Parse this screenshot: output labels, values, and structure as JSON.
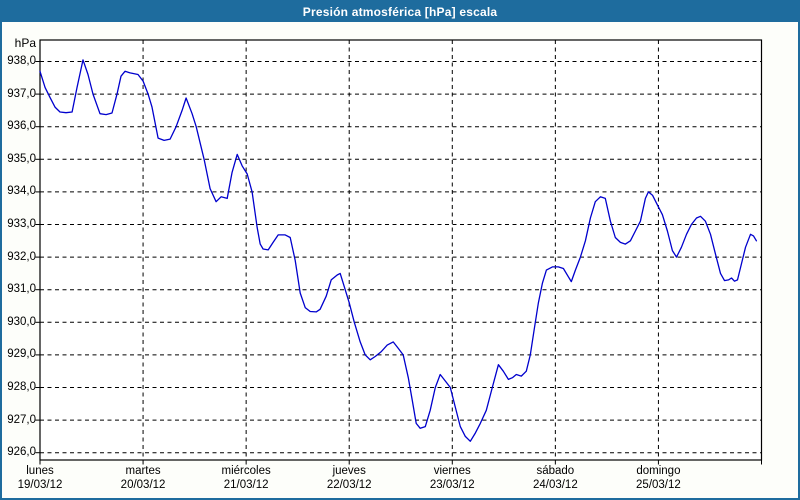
{
  "window": {
    "title": "Presión atmosférica [hPa] escala"
  },
  "colors": {
    "titlebar_bg": "#1e6c9e",
    "window_border": "#1e6c9e",
    "page_bg": "#fdfefa",
    "plot_bg": "#ffffff",
    "grid_color": "#000000",
    "axis_color": "#000000",
    "line_color": "#0000cd",
    "title_text": "#ffffff",
    "tick_text": "#000000"
  },
  "chart_data": {
    "type": "line",
    "title": "Presión atmosférica [hPa] escala",
    "unit_label": "hPa",
    "ylabel": "hPa",
    "xlabel": "",
    "grid": "dashed",
    "legend": "none",
    "ylim": [
      925.8,
      938.65
    ],
    "y_ticks": [
      938,
      937,
      936,
      935,
      934,
      933,
      932,
      931,
      930,
      929,
      928,
      927,
      926
    ],
    "y_tick_labels": [
      "938,0",
      "937,0",
      "936,0",
      "935,0",
      "934,0",
      "933,0",
      "932,0",
      "931,0",
      "930,0",
      "929,0",
      "928,0",
      "927,0",
      "926,0"
    ],
    "x_days_total": 7,
    "x_categories": [
      {
        "day": "lunes",
        "date": "19/03/12"
      },
      {
        "day": "martes",
        "date": "20/03/12"
      },
      {
        "day": "miércoles",
        "date": "21/03/12"
      },
      {
        "day": "jueves",
        "date": "22/03/12"
      },
      {
        "day": "viernes",
        "date": "23/03/12"
      },
      {
        "day": "sábado",
        "date": "24/03/12"
      },
      {
        "day": "domingo",
        "date": "25/03/12"
      }
    ],
    "series": [
      {
        "name": "Presión atmosférica",
        "color": "#0000cd",
        "points": [
          [
            0.0,
            937.7
          ],
          [
            0.049,
            937.2
          ],
          [
            0.097,
            936.9
          ],
          [
            0.146,
            936.6
          ],
          [
            0.194,
            936.45
          ],
          [
            0.252,
            936.43
          ],
          [
            0.311,
            936.45
          ],
          [
            0.359,
            937.2
          ],
          [
            0.417,
            938.05
          ],
          [
            0.466,
            937.6
          ],
          [
            0.514,
            937.0
          ],
          [
            0.582,
            936.4
          ],
          [
            0.641,
            936.37
          ],
          [
            0.699,
            936.42
          ],
          [
            0.747,
            937.0
          ],
          [
            0.786,
            937.55
          ],
          [
            0.825,
            937.7
          ],
          [
            0.874,
            937.65
          ],
          [
            0.951,
            937.6
          ],
          [
            1.0,
            937.4
          ],
          [
            1.049,
            937.0
          ],
          [
            1.087,
            936.6
          ],
          [
            1.146,
            935.65
          ],
          [
            1.204,
            935.58
          ],
          [
            1.262,
            935.62
          ],
          [
            1.32,
            936.0
          ],
          [
            1.379,
            936.5
          ],
          [
            1.417,
            936.88
          ],
          [
            1.476,
            936.4
          ],
          [
            1.515,
            936.0
          ],
          [
            1.592,
            935.0
          ],
          [
            1.65,
            934.1
          ],
          [
            1.709,
            933.7
          ],
          [
            1.757,
            933.85
          ],
          [
            1.816,
            933.8
          ],
          [
            1.864,
            934.6
          ],
          [
            1.913,
            935.15
          ],
          [
            1.961,
            934.8
          ],
          [
            2.01,
            934.55
          ],
          [
            2.058,
            934.0
          ],
          [
            2.107,
            932.9
          ],
          [
            2.136,
            932.4
          ],
          [
            2.165,
            932.25
          ],
          [
            2.214,
            932.22
          ],
          [
            2.262,
            932.45
          ],
          [
            2.311,
            932.68
          ],
          [
            2.379,
            932.68
          ],
          [
            2.427,
            932.6
          ],
          [
            2.476,
            931.9
          ],
          [
            2.524,
            930.9
          ],
          [
            2.573,
            930.45
          ],
          [
            2.621,
            930.33
          ],
          [
            2.68,
            930.32
          ],
          [
            2.718,
            930.4
          ],
          [
            2.777,
            930.8
          ],
          [
            2.825,
            931.3
          ],
          [
            2.883,
            931.45
          ],
          [
            2.913,
            931.5
          ],
          [
            2.951,
            931.1
          ],
          [
            3.0,
            930.6
          ],
          [
            3.049,
            930.0
          ],
          [
            3.107,
            929.4
          ],
          [
            3.155,
            929.0
          ],
          [
            3.204,
            928.85
          ],
          [
            3.252,
            928.95
          ],
          [
            3.311,
            929.1
          ],
          [
            3.369,
            929.3
          ],
          [
            3.427,
            929.4
          ],
          [
            3.476,
            929.2
          ],
          [
            3.524,
            929.0
          ],
          [
            3.573,
            928.3
          ],
          [
            3.612,
            927.6
          ],
          [
            3.65,
            926.9
          ],
          [
            3.689,
            926.75
          ],
          [
            3.738,
            926.8
          ],
          [
            3.786,
            927.3
          ],
          [
            3.835,
            928.0
          ],
          [
            3.883,
            928.4
          ],
          [
            3.932,
            928.2
          ],
          [
            3.981,
            928.0
          ],
          [
            4.029,
            927.4
          ],
          [
            4.078,
            926.8
          ],
          [
            4.126,
            926.5
          ],
          [
            4.175,
            926.35
          ],
          [
            4.223,
            926.6
          ],
          [
            4.272,
            926.9
          ],
          [
            4.33,
            927.3
          ],
          [
            4.388,
            928.0
          ],
          [
            4.447,
            928.7
          ],
          [
            4.495,
            928.5
          ],
          [
            4.544,
            928.25
          ],
          [
            4.583,
            928.3
          ],
          [
            4.621,
            928.4
          ],
          [
            4.67,
            928.35
          ],
          [
            4.718,
            928.5
          ],
          [
            4.757,
            929.0
          ],
          [
            4.796,
            929.8
          ],
          [
            4.835,
            930.6
          ],
          [
            4.874,
            931.2
          ],
          [
            4.913,
            931.6
          ],
          [
            4.971,
            931.7
          ],
          [
            5.029,
            931.7
          ],
          [
            5.078,
            931.65
          ],
          [
            5.126,
            931.4
          ],
          [
            5.155,
            931.25
          ],
          [
            5.194,
            931.6
          ],
          [
            5.243,
            932.0
          ],
          [
            5.291,
            932.5
          ],
          [
            5.34,
            933.2
          ],
          [
            5.388,
            933.7
          ],
          [
            5.437,
            933.85
          ],
          [
            5.485,
            933.8
          ],
          [
            5.534,
            933.1
          ],
          [
            5.582,
            932.6
          ],
          [
            5.631,
            932.45
          ],
          [
            5.68,
            932.4
          ],
          [
            5.728,
            932.5
          ],
          [
            5.777,
            932.8
          ],
          [
            5.825,
            933.1
          ],
          [
            5.874,
            933.8
          ],
          [
            5.903,
            934.0
          ],
          [
            5.942,
            933.9
          ],
          [
            5.99,
            933.6
          ],
          [
            6.039,
            933.3
          ],
          [
            6.087,
            932.8
          ],
          [
            6.136,
            932.2
          ],
          [
            6.175,
            932.0
          ],
          [
            6.223,
            932.3
          ],
          [
            6.272,
            932.7
          ],
          [
            6.32,
            933.0
          ],
          [
            6.369,
            933.2
          ],
          [
            6.408,
            933.25
          ],
          [
            6.456,
            933.1
          ],
          [
            6.505,
            932.7
          ],
          [
            6.553,
            932.1
          ],
          [
            6.602,
            931.5
          ],
          [
            6.641,
            931.28
          ],
          [
            6.68,
            931.3
          ],
          [
            6.709,
            931.36
          ],
          [
            6.738,
            931.26
          ],
          [
            6.767,
            931.3
          ],
          [
            6.806,
            931.8
          ],
          [
            6.845,
            932.3
          ],
          [
            6.893,
            932.7
          ],
          [
            6.922,
            932.65
          ],
          [
            6.951,
            932.5
          ]
        ]
      }
    ]
  }
}
